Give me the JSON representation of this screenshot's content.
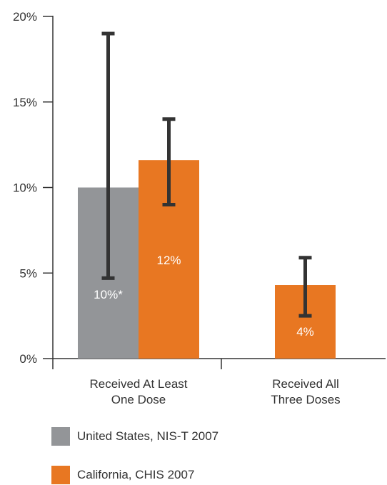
{
  "chart_data": {
    "type": "bar",
    "categories": [
      [
        "Received At Least",
        "One Dose"
      ],
      [
        "Received All",
        "Three Doses"
      ]
    ],
    "ylim": [
      0,
      20
    ],
    "yticks": [
      0,
      5,
      10,
      15,
      20
    ],
    "ytick_labels": [
      "0%",
      "5%",
      "10%",
      "15%",
      "20%"
    ],
    "series": [
      {
        "name": "United States, NIS-T 2007",
        "color": "#939598",
        "values": [
          10,
          null
        ],
        "error_low": [
          4.7,
          null
        ],
        "error_high": [
          19,
          null
        ],
        "labels": [
          "10%*",
          ""
        ]
      },
      {
        "name": "California, CHIS 2007",
        "color": "#e87722",
        "values": [
          11.6,
          4.3
        ],
        "error_low": [
          9,
          2.5
        ],
        "error_high": [
          14,
          5.9
        ],
        "labels": [
          "12%",
          "4%"
        ]
      }
    ]
  },
  "legend": [
    {
      "label": "United States, NIS-T 2007",
      "color": "#939598"
    },
    {
      "label": "California, CHIS 2007",
      "color": "#e87722"
    }
  ]
}
